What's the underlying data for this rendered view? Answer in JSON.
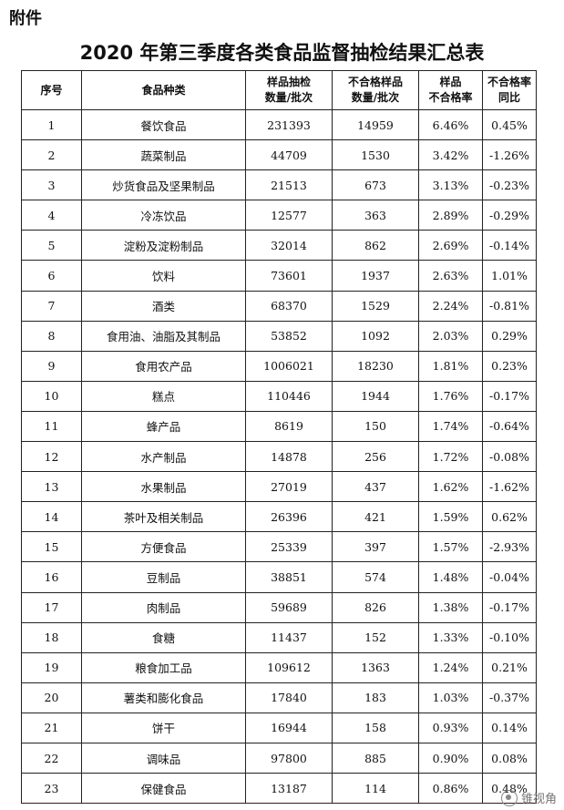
{
  "attachment_label": "附件",
  "title": "2020 年第三季度各类食品监督抽检结果汇总表",
  "headers": {
    "seq": "序号",
    "category": "食品种类",
    "samples_l1": "样品抽检",
    "samples_l2": "数量/批次",
    "failed_l1": "不合格样品",
    "failed_l2": "数量/批次",
    "rate_l1": "样品",
    "rate_l2": "不合格率",
    "yoy_l1": "不合格率",
    "yoy_l2": "同比"
  },
  "rows": [
    {
      "no": "1",
      "name": "餐饮食品",
      "samples": "231393",
      "failed": "14959",
      "rate": "6.46%",
      "yoy": "0.45%"
    },
    {
      "no": "2",
      "name": "蔬菜制品",
      "samples": "44709",
      "failed": "1530",
      "rate": "3.42%",
      "yoy": "-1.26%"
    },
    {
      "no": "3",
      "name": "炒货食品及坚果制品",
      "samples": "21513",
      "failed": "673",
      "rate": "3.13%",
      "yoy": "-0.23%"
    },
    {
      "no": "4",
      "name": "冷冻饮品",
      "samples": "12577",
      "failed": "363",
      "rate": "2.89%",
      "yoy": "-0.29%"
    },
    {
      "no": "5",
      "name": "淀粉及淀粉制品",
      "samples": "32014",
      "failed": "862",
      "rate": "2.69%",
      "yoy": "-0.14%"
    },
    {
      "no": "6",
      "name": "饮料",
      "samples": "73601",
      "failed": "1937",
      "rate": "2.63%",
      "yoy": "1.01%"
    },
    {
      "no": "7",
      "name": "酒类",
      "samples": "68370",
      "failed": "1529",
      "rate": "2.24%",
      "yoy": "-0.81%"
    },
    {
      "no": "8",
      "name": "食用油、油脂及其制品",
      "samples": "53852",
      "failed": "1092",
      "rate": "2.03%",
      "yoy": "0.29%"
    },
    {
      "no": "9",
      "name": "食用农产品",
      "samples": "1006021",
      "failed": "18230",
      "rate": "1.81%",
      "yoy": "0.23%"
    },
    {
      "no": "10",
      "name": "糕点",
      "samples": "110446",
      "failed": "1944",
      "rate": "1.76%",
      "yoy": "-0.17%"
    },
    {
      "no": "11",
      "name": "蜂产品",
      "samples": "8619",
      "failed": "150",
      "rate": "1.74%",
      "yoy": "-0.64%"
    },
    {
      "no": "12",
      "name": "水产制品",
      "samples": "14878",
      "failed": "256",
      "rate": "1.72%",
      "yoy": "-0.08%"
    },
    {
      "no": "13",
      "name": "水果制品",
      "samples": "27019",
      "failed": "437",
      "rate": "1.62%",
      "yoy": "-1.62%"
    },
    {
      "no": "14",
      "name": "茶叶及相关制品",
      "samples": "26396",
      "failed": "421",
      "rate": "1.59%",
      "yoy": "0.62%"
    },
    {
      "no": "15",
      "name": "方便食品",
      "samples": "25339",
      "failed": "397",
      "rate": "1.57%",
      "yoy": "-2.93%"
    },
    {
      "no": "16",
      "name": "豆制品",
      "samples": "38851",
      "failed": "574",
      "rate": "1.48%",
      "yoy": "-0.04%"
    },
    {
      "no": "17",
      "name": "肉制品",
      "samples": "59689",
      "failed": "826",
      "rate": "1.38%",
      "yoy": "-0.17%"
    },
    {
      "no": "18",
      "name": "食糖",
      "samples": "11437",
      "failed": "152",
      "rate": "1.33%",
      "yoy": "-0.10%"
    },
    {
      "no": "19",
      "name": "粮食加工品",
      "samples": "109612",
      "failed": "1363",
      "rate": "1.24%",
      "yoy": "0.21%"
    },
    {
      "no": "20",
      "name": "薯类和膨化食品",
      "samples": "17840",
      "failed": "183",
      "rate": "1.03%",
      "yoy": "-0.37%"
    },
    {
      "no": "21",
      "name": "饼干",
      "samples": "16944",
      "failed": "158",
      "rate": "0.93%",
      "yoy": "0.14%"
    },
    {
      "no": "22",
      "name": "调味品",
      "samples": "97800",
      "failed": "885",
      "rate": "0.90%",
      "yoy": "0.08%"
    },
    {
      "no": "23",
      "name": "保健食品",
      "samples": "13187",
      "failed": "114",
      "rate": "0.86%",
      "yoy": "0.48%"
    }
  ],
  "watermark_text": "锥视角"
}
